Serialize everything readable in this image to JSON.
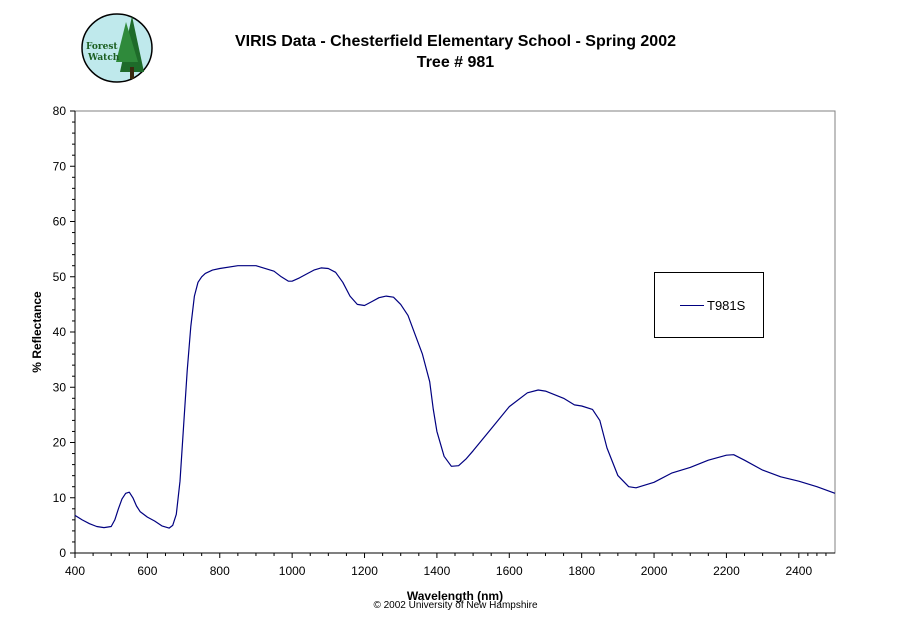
{
  "logo": {
    "text_line1": "Forest",
    "text_line2": "Watch"
  },
  "title_line1": "VIRIS Data - Chesterfield Elementary School - Spring 2002",
  "title_line2": "Tree # 981",
  "copyright": "© 2002 University of New Hampshire",
  "colors": {
    "series": "#000080",
    "axis": "#000000",
    "logo_bg": "#bfe9ec",
    "tree": "#1e6b2a"
  },
  "chart_data": {
    "type": "line",
    "title": "VIRIS Data - Chesterfield Elementary School - Spring 2002",
    "subtitle": "Tree # 981",
    "xlabel": "Wavelength (nm)",
    "ylabel": "% Reflectance",
    "xlim": [
      400,
      2500
    ],
    "ylim": [
      0,
      80
    ],
    "xticks": [
      400,
      600,
      800,
      1000,
      1200,
      1400,
      1600,
      1800,
      2000,
      2200,
      2400
    ],
    "yticks": [
      0,
      10,
      20,
      30,
      40,
      50,
      60,
      70,
      80
    ],
    "grid": false,
    "legend_position": "right",
    "series": [
      {
        "name": "T981S",
        "x": [
          400,
          420,
          440,
          460,
          480,
          500,
          510,
          520,
          530,
          540,
          550,
          560,
          570,
          580,
          600,
          620,
          640,
          660,
          670,
          680,
          690,
          700,
          710,
          720,
          730,
          740,
          750,
          760,
          780,
          800,
          850,
          900,
          950,
          970,
          990,
          1000,
          1020,
          1040,
          1060,
          1080,
          1100,
          1120,
          1140,
          1160,
          1180,
          1200,
          1220,
          1240,
          1260,
          1280,
          1300,
          1320,
          1340,
          1360,
          1380,
          1390,
          1400,
          1420,
          1440,
          1460,
          1480,
          1500,
          1550,
          1600,
          1650,
          1680,
          1700,
          1750,
          1780,
          1800,
          1830,
          1850,
          1870,
          1900,
          1930,
          1950,
          2000,
          2050,
          2100,
          2150,
          2200,
          2220,
          2250,
          2300,
          2350,
          2400,
          2450,
          2500
        ],
        "values": [
          6.8,
          6.0,
          5.3,
          4.8,
          4.6,
          4.8,
          6.0,
          8.0,
          9.8,
          10.8,
          11.0,
          10.0,
          8.5,
          7.5,
          6.5,
          5.8,
          4.9,
          4.5,
          5.0,
          7.0,
          13.0,
          23.0,
          33.0,
          41.0,
          46.5,
          49.0,
          50.0,
          50.6,
          51.2,
          51.5,
          52.0,
          52.0,
          51.0,
          50.0,
          49.2,
          49.2,
          49.8,
          50.5,
          51.2,
          51.6,
          51.5,
          50.8,
          49.0,
          46.5,
          45.0,
          44.8,
          45.5,
          46.2,
          46.5,
          46.3,
          45.0,
          43.0,
          39.5,
          36.0,
          31.0,
          26.0,
          22.0,
          17.5,
          15.7,
          15.8,
          17.0,
          18.5,
          22.5,
          26.5,
          29.0,
          29.5,
          29.3,
          28.0,
          26.8,
          26.6,
          26.0,
          24.0,
          19.0,
          14.0,
          12.0,
          11.8,
          12.8,
          14.5,
          15.5,
          16.8,
          17.7,
          17.8,
          16.8,
          15.0,
          13.8,
          13.0,
          12.0,
          10.8
        ]
      }
    ]
  }
}
